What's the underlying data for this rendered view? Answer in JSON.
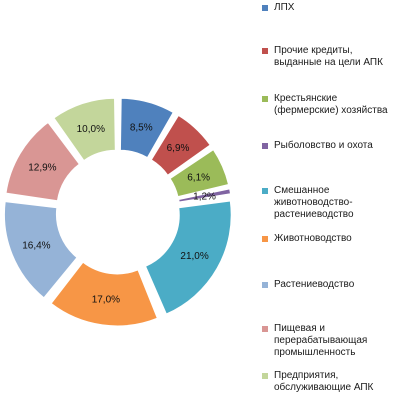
{
  "chart_data": {
    "type": "pie",
    "style": "donut-exploded",
    "slices": [
      {
        "label": "ЛПХ",
        "value": 8.5,
        "display": "8,5%",
        "color": "#4f81bd"
      },
      {
        "label": "Прочие кредиты, выданные на цели АПК",
        "value": 6.9,
        "display": "6,9%",
        "color": "#c0504d"
      },
      {
        "label": "Крестьянские (фермерские) хозяйства",
        "value": 6.1,
        "display": "6,1%",
        "color": "#9bbb59"
      },
      {
        "label": "Рыболовство и охота",
        "value": 1.2,
        "display": "1,2%",
        "color": "#8064a2"
      },
      {
        "label": "Смешанное животноводство-растениеводство",
        "value": 21.0,
        "display": "21,0%",
        "color": "#4bacc6"
      },
      {
        "label": "Животноводство",
        "value": 17.0,
        "display": "17,0%",
        "color": "#f79646"
      },
      {
        "label": "Растениеводство",
        "value": 16.4,
        "display": "16,4%",
        "color": "#95b3d7"
      },
      {
        "label": "Пищевая и перерабатывающая промышленность",
        "value": 12.9,
        "display": "12,9%",
        "color": "#d99694"
      },
      {
        "label": "Предприятия, обслуживающие АПК",
        "value": 10.0,
        "display": "10,0%",
        "color": "#c3d69b"
      }
    ],
    "legend_position": "right"
  },
  "legend": [
    {
      "label_lines": [
        "ЛПХ"
      ]
    },
    {
      "label_lines": [
        "Прочие кредиты,",
        "выданные на цели АПК"
      ]
    },
    {
      "label_lines": [
        "Крестьянские",
        "(фермерские) хозяйства"
      ]
    },
    {
      "label_lines": [
        "Рыболовство и охота"
      ]
    },
    {
      "label_lines": [
        "Смешанное",
        "животноводство-",
        "растениеводство"
      ]
    },
    {
      "label_lines": [
        "Животноводство"
      ]
    },
    {
      "label_lines": [
        "Растениеводство"
      ]
    },
    {
      "label_lines": [
        "Пищевая и",
        "перерабатывающая",
        "промышленность"
      ]
    },
    {
      "label_lines": [
        "Предприятия,",
        "обслуживающие АПК"
      ]
    }
  ]
}
